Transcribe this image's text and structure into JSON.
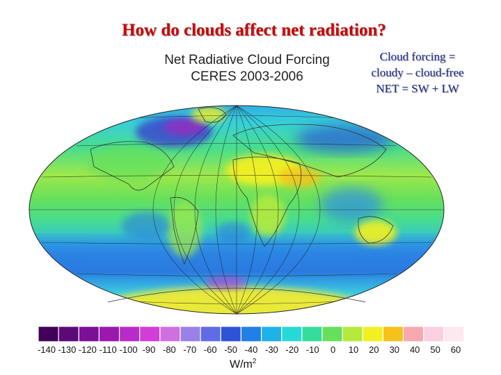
{
  "slide": {
    "title": "How do clouds affect net radiation?",
    "notes": [
      "Cloud forcing =",
      "cloudy – cloud-free",
      "NET = SW + LW"
    ]
  },
  "map": {
    "title_line1": "Net Radiative Cloud Forcing",
    "title_line2": "CERES 2003-2006",
    "projection": "Hammer (equal-area ellipse)",
    "gridlines": true
  },
  "colorbar": {
    "min": -140,
    "max": 60,
    "step": 10,
    "tick_labels": [
      "-140",
      "-130",
      "-120",
      "-110",
      "-100",
      "-90",
      "-80",
      "-70",
      "-60",
      "-50",
      "-40",
      "-30",
      "-20",
      "-10",
      "0",
      "10",
      "20",
      "30",
      "40",
      "50",
      "60"
    ],
    "colors": [
      "#43005a",
      "#5c0a78",
      "#7a1096",
      "#9a18b0",
      "#ba2ac8",
      "#d13dd6",
      "#d06fe0",
      "#9a80e8",
      "#5f6ce6",
      "#2f53d8",
      "#2080e4",
      "#1fb2e8",
      "#27d9d6",
      "#36dc9a",
      "#66e05c",
      "#b4ea3c",
      "#f2f020",
      "#f6c21a",
      "#f8a8b0",
      "#fbd0e0",
      "#fde8f0"
    ],
    "units_main": "W/m",
    "units_exp": "2"
  }
}
